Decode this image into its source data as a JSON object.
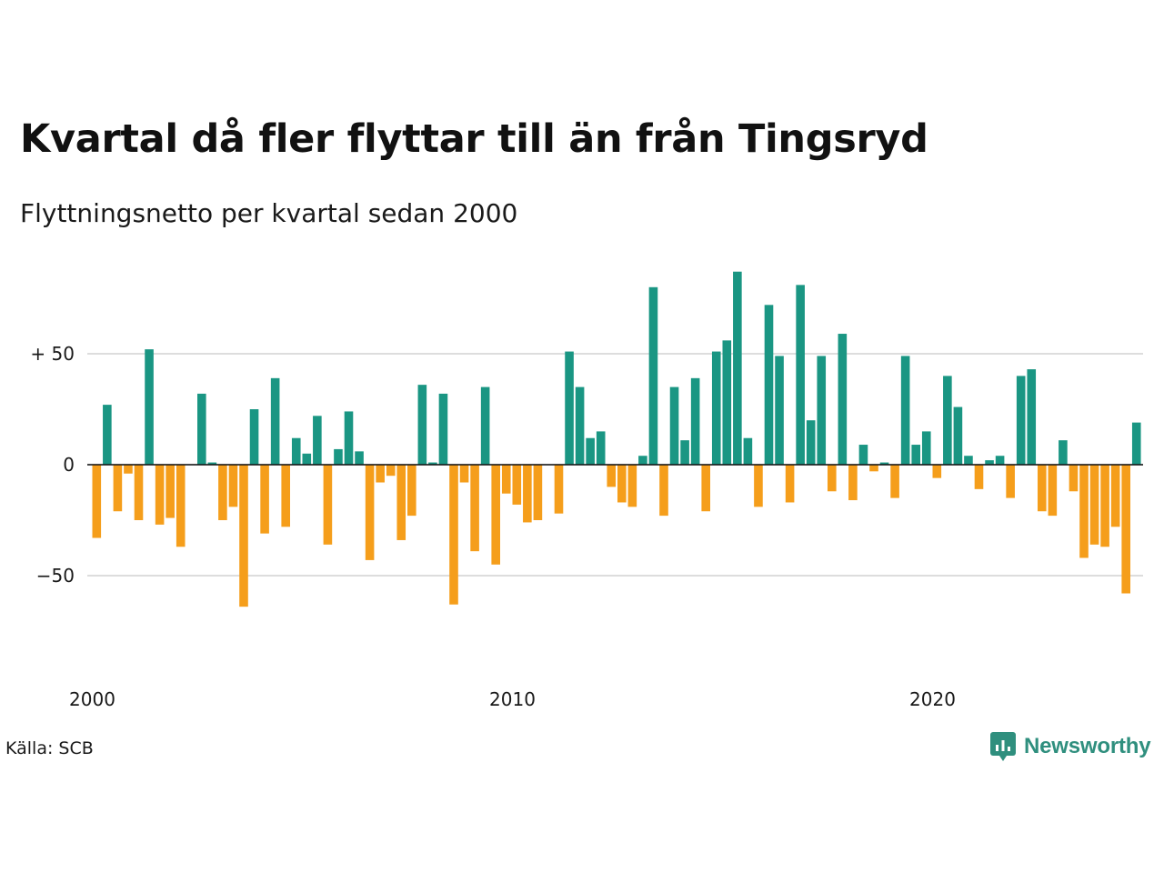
{
  "title": "Kvartal då fler flyttar till än från Tingsryd",
  "subtitle": "Flyttningsnetto per kvartal sedan 2000",
  "source": "Källa: SCB",
  "brand": {
    "name": "Newsworthy",
    "logo_icon": "newsworthy-chart-bubble-icon"
  },
  "colors": {
    "positive": "#1a9683",
    "negative": "#f59e1b",
    "grid": "#dddddd",
    "brand": "#2f8f7e"
  },
  "chart_data": {
    "type": "bar",
    "start_year": 2000,
    "period": "quarter",
    "values": [
      -33,
      27,
      -21,
      -4,
      -25,
      52,
      -27,
      -24,
      -37,
      0,
      32,
      1,
      -25,
      -19,
      -64,
      25,
      -31,
      39,
      -28,
      12,
      5,
      22,
      -36,
      7,
      24,
      6,
      -43,
      -8,
      -5,
      -34,
      -23,
      36,
      1,
      32,
      -63,
      -8,
      -39,
      35,
      -45,
      -13,
      -18,
      -26,
      -25,
      0,
      -22,
      51,
      35,
      12,
      15,
      -10,
      -17,
      -19,
      4,
      80,
      -23,
      35,
      11,
      39,
      -21,
      51,
      56,
      87,
      12,
      -19,
      72,
      49,
      -17,
      81,
      20,
      49,
      -12,
      59,
      -16,
      9,
      -3,
      1,
      -15,
      49,
      9,
      15,
      -6,
      40,
      26,
      4,
      -11,
      2,
      4,
      -15,
      40,
      43,
      -21,
      -23,
      11,
      -12,
      -42,
      -36,
      -37,
      -28,
      -58,
      19
    ],
    "x_ticks": [
      "2000",
      "2010",
      "2020"
    ],
    "y_ticks": [
      {
        "value": 50,
        "label": "+ 50"
      },
      {
        "value": 0,
        "label": "0"
      },
      {
        "value": -50,
        "label": "−50"
      }
    ],
    "ylim": [
      -70,
      90
    ],
    "grid": true,
    "xlabel": "",
    "ylabel": ""
  }
}
